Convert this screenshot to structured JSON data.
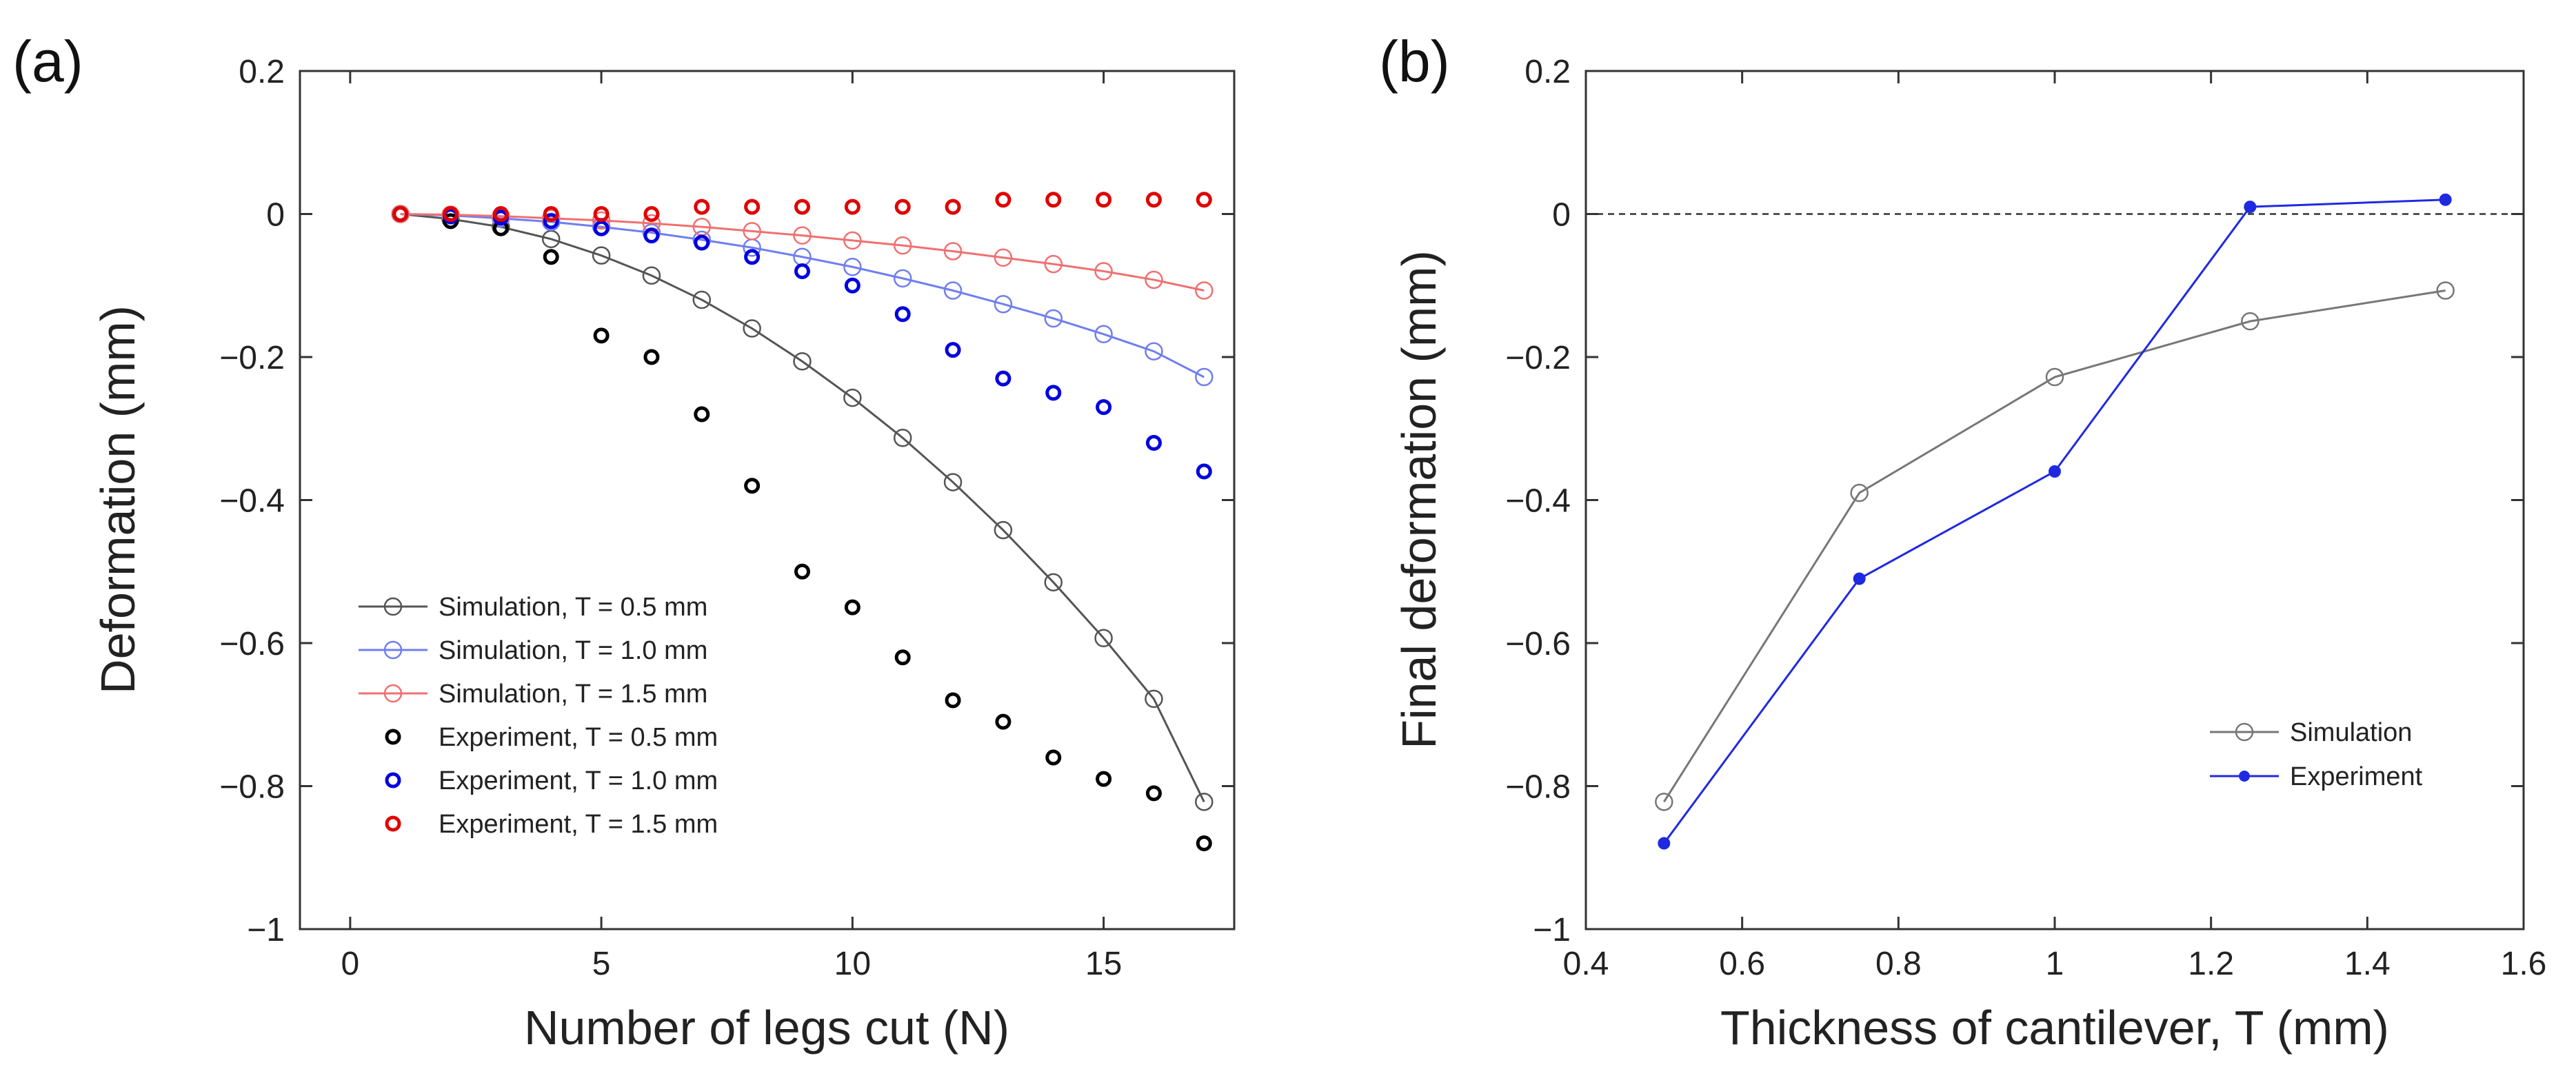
{
  "panels": {
    "a_label": "(a)",
    "b_label": "(b)"
  },
  "chart_data": [
    {
      "type": "scatter",
      "panel": "(a)",
      "title": "",
      "xlabel": "Number of legs cut (N)",
      "ylabel": "Deformation (mm)",
      "xlim": [
        -1,
        17.6
      ],
      "ylim": [
        -1,
        0.2
      ],
      "xticks": [
        0,
        5,
        10,
        15
      ],
      "xtick_labels": [
        "0",
        "5",
        "10",
        "15"
      ],
      "yticks": [
        0.2,
        0,
        -0.2,
        -0.4,
        -0.6,
        -0.8,
        -1
      ],
      "ytick_labels": [
        "0.2",
        "0",
        "−0.2",
        "−0.4",
        "−0.6",
        "−0.8",
        "−1"
      ],
      "grid": false,
      "legend_position": "lower-left",
      "x": [
        1,
        2,
        3,
        4,
        5,
        6,
        7,
        8,
        9,
        10,
        11,
        12,
        13,
        14,
        15,
        16,
        17
      ],
      "series": [
        {
          "name": "Simulation,  T = 0.5 mm",
          "kind": "line-open-marker",
          "color": "#555555",
          "values": [
            0,
            -0.007,
            -0.018,
            -0.035,
            -0.058,
            -0.086,
            -0.12,
            -0.16,
            -0.206,
            -0.257,
            -0.313,
            -0.375,
            -0.442,
            -0.515,
            -0.593,
            -0.678,
            -0.822
          ]
        },
        {
          "name": "Simulation,  T = 1.0 mm",
          "kind": "line-open-marker",
          "color": "#6f7ef0",
          "values": [
            0,
            -0.002,
            -0.006,
            -0.011,
            -0.018,
            -0.026,
            -0.036,
            -0.047,
            -0.06,
            -0.074,
            -0.09,
            -0.107,
            -0.126,
            -0.146,
            -0.168,
            -0.192,
            -0.228
          ]
        },
        {
          "name": "Simulation,  T = 1.5 mm",
          "kind": "line-open-marker",
          "color": "#f07070",
          "values": [
            0,
            -0.001,
            -0.003,
            -0.006,
            -0.009,
            -0.013,
            -0.018,
            -0.024,
            -0.03,
            -0.037,
            -0.044,
            -0.052,
            -0.061,
            -0.07,
            -0.08,
            -0.092,
            -0.107
          ]
        },
        {
          "name": "Experiment, T = 0.5 mm",
          "kind": "open-marker",
          "color": "#000000",
          "values": [
            0,
            -0.01,
            -0.02,
            -0.06,
            -0.17,
            -0.2,
            -0.28,
            -0.38,
            -0.5,
            -0.55,
            -0.62,
            -0.68,
            -0.71,
            -0.76,
            -0.79,
            -0.81,
            -0.88
          ]
        },
        {
          "name": "Experiment, T = 1.0 mm",
          "kind": "open-marker",
          "color": "#0000e0",
          "values": [
            0,
            -0.003,
            -0.005,
            -0.01,
            -0.02,
            -0.03,
            -0.04,
            -0.06,
            -0.08,
            -0.1,
            -0.14,
            -0.19,
            -0.23,
            -0.25,
            -0.27,
            -0.32,
            -0.36
          ]
        },
        {
          "name": "Experiment, T = 1.5 mm",
          "kind": "open-marker",
          "color": "#e00000",
          "values": [
            0,
            0,
            0,
            0,
            0,
            0,
            0.01,
            0.01,
            0.01,
            0.01,
            0.01,
            0.01,
            0.02,
            0.02,
            0.02,
            0.02,
            0.02
          ]
        }
      ]
    },
    {
      "type": "line",
      "panel": "(b)",
      "title": "",
      "xlabel": "Thickness of cantilever, T (mm)",
      "ylabel": "Final deformation (mm)",
      "xlim": [
        0.4,
        1.6
      ],
      "ylim": [
        -1,
        0.2
      ],
      "xticks": [
        0.4,
        0.6,
        0.8,
        1.0,
        1.2,
        1.4,
        1.6
      ],
      "xtick_labels": [
        "0.4",
        "0.6",
        "0.8",
        "1",
        "1.2",
        "1.4",
        "1.6"
      ],
      "yticks": [
        0.2,
        0,
        -0.2,
        -0.4,
        -0.6,
        -0.8,
        -1
      ],
      "ytick_labels": [
        "0.2",
        "0",
        "−0.2",
        "−0.4",
        "−0.6",
        "−0.8",
        "−1"
      ],
      "grid": false,
      "reference_line_y": 0,
      "legend_position": "lower-right",
      "x": [
        0.5,
        0.75,
        1.0,
        1.25,
        1.5
      ],
      "series": [
        {
          "name": "Simulation",
          "kind": "line-open-marker",
          "color": "#777777",
          "values": [
            -0.822,
            -0.39,
            -0.228,
            -0.15,
            -0.107
          ]
        },
        {
          "name": "Experiment",
          "kind": "line-filled-marker",
          "color": "#1f2ae0",
          "values": [
            -0.88,
            -0.51,
            -0.36,
            0.01,
            0.02
          ]
        }
      ]
    }
  ]
}
